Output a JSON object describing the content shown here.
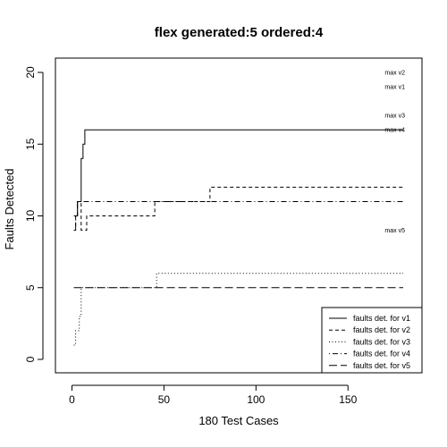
{
  "chart_data": {
    "type": "line",
    "title": "flex generated:5 ordered:4",
    "xlabel": "180 Test Cases",
    "ylabel": "Faults Detected",
    "xlim": [
      0,
      180
    ],
    "ylim": [
      0,
      20
    ],
    "x_ticks": [
      0,
      50,
      100,
      150
    ],
    "y_ticks": [
      0,
      5,
      10,
      15,
      20
    ],
    "grid": false,
    "legend_position": "bottom-right",
    "series": [
      {
        "name": "faults det. for v1",
        "dash": "solid",
        "points": [
          [
            1,
            10
          ],
          [
            3,
            10
          ],
          [
            3,
            11
          ],
          [
            5,
            11
          ],
          [
            5,
            14
          ],
          [
            6,
            14
          ],
          [
            6,
            15
          ],
          [
            7,
            15
          ],
          [
            7,
            16
          ],
          [
            180,
            16
          ]
        ]
      },
      {
        "name": "faults det. for v2",
        "dash": "short-dash",
        "points": [
          [
            1,
            9
          ],
          [
            2,
            9
          ],
          [
            2,
            10
          ],
          [
            3,
            10
          ],
          [
            3,
            11
          ],
          [
            5,
            11
          ],
          [
            5,
            9
          ],
          [
            8,
            9
          ],
          [
            8,
            10
          ],
          [
            45,
            10
          ],
          [
            45,
            11
          ],
          [
            75,
            11
          ],
          [
            75,
            12
          ],
          [
            180,
            12
          ]
        ]
      },
      {
        "name": "faults det. for v3",
        "dash": "dotted",
        "points": [
          [
            1,
            1
          ],
          [
            2,
            1
          ],
          [
            2,
            2
          ],
          [
            4,
            2
          ],
          [
            4,
            3
          ],
          [
            5,
            3
          ],
          [
            5,
            5
          ],
          [
            46,
            5
          ],
          [
            46,
            6
          ],
          [
            180,
            6
          ]
        ]
      },
      {
        "name": "faults det. for v4",
        "dash": "dash-dot",
        "points": [
          [
            1,
            9
          ],
          [
            2,
            9
          ],
          [
            2,
            10
          ],
          [
            3,
            10
          ],
          [
            3,
            11
          ],
          [
            180,
            11
          ]
        ]
      },
      {
        "name": "faults det. for v5",
        "dash": "long-dash",
        "points": [
          [
            1,
            5
          ],
          [
            180,
            5
          ]
        ]
      }
    ],
    "annotations": [
      {
        "text": "max v2",
        "x": 170,
        "y": 20
      },
      {
        "text": "max v1",
        "x": 170,
        "y": 19
      },
      {
        "text": "max v3",
        "x": 170,
        "y": 17
      },
      {
        "text": "max v4",
        "x": 170,
        "y": 16
      },
      {
        "text": "max v5",
        "x": 170,
        "y": 9
      }
    ]
  }
}
